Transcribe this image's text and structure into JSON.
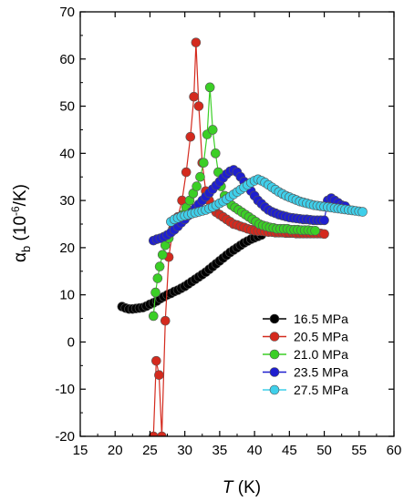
{
  "chart_data": {
    "type": "line",
    "xlabel": "T (K)",
    "xlabel_italic": "T",
    "xlabel_unit": " (K)",
    "ylabel_base": "α",
    "ylabel_sub": "b",
    "ylabel_paren": " (10",
    "ylabel_sup": "-6",
    "ylabel_unit": "/K)",
    "xlim": [
      15,
      60
    ],
    "ylim": [
      -20,
      70
    ],
    "xticks": [
      15,
      20,
      25,
      30,
      35,
      40,
      45,
      50,
      55,
      60
    ],
    "yticks": [
      -20,
      -10,
      0,
      10,
      20,
      30,
      40,
      50,
      60,
      70
    ],
    "legend_position": "bottom-right",
    "series": [
      {
        "name": "16.5 MPa",
        "color": "#000000",
        "x": [
          21.0,
          21.5,
          22.0,
          22.5,
          23.0,
          23.5,
          24.0,
          24.5,
          25.0,
          25.5,
          26.0,
          26.5,
          27.0,
          27.5,
          28.0,
          28.5,
          29.0,
          29.5,
          30.0,
          30.5,
          31.0,
          31.5,
          32.0,
          32.5,
          33.0,
          33.5,
          34.0,
          34.5,
          35.0,
          35.5,
          36.0,
          36.5,
          37.0,
          37.5,
          38.0,
          38.5,
          39.0,
          39.5,
          40.0,
          40.5,
          41.0
        ],
        "y": [
          7.5,
          7.2,
          7.0,
          7.0,
          7.1,
          7.2,
          7.3,
          7.6,
          8.0,
          8.3,
          8.7,
          9.2,
          9.6,
          10.0,
          10.3,
          10.7,
          11.0,
          11.4,
          11.8,
          12.3,
          12.8,
          13.3,
          13.8,
          14.3,
          14.8,
          15.4,
          16.0,
          16.6,
          17.2,
          17.8,
          18.4,
          19.0,
          19.5,
          20.0,
          20.5,
          21.0,
          21.4,
          21.8,
          22.1,
          22.4,
          22.7
        ]
      },
      {
        "name": "20.5 MPa",
        "color": "#d42a1e",
        "x": [
          25.5,
          25.9,
          26.3,
          26.7,
          27.2,
          27.7,
          28.3,
          29.0,
          29.6,
          30.2,
          30.8,
          31.3,
          31.6,
          32.0,
          32.5,
          33.0,
          33.5,
          34.0,
          34.5,
          35.0,
          35.5,
          36.0,
          36.5,
          37.0,
          37.5,
          38.0,
          38.5,
          39.0,
          39.5,
          40.0,
          40.5,
          41.0,
          41.5,
          42.0,
          42.5,
          43.0,
          43.5,
          44.0,
          44.5,
          45.0,
          45.5,
          46.0,
          46.5,
          47.0,
          47.5,
          48.0,
          48.5,
          49.0,
          49.5,
          50.0
        ],
        "y": [
          -20,
          -4.0,
          -7.0,
          -20,
          4.5,
          18.0,
          24.0,
          26.5,
          30.0,
          36.0,
          43.5,
          52.0,
          63.5,
          50.0,
          38.0,
          32.0,
          30.0,
          28.5,
          27.5,
          27.0,
          26.5,
          26.0,
          25.5,
          25.0,
          24.8,
          24.5,
          24.3,
          24.0,
          23.8,
          23.6,
          23.5,
          23.5,
          23.4,
          23.3,
          23.3,
          23.2,
          23.2,
          23.2,
          23.1,
          23.1,
          23.1,
          23.0,
          23.0,
          23.0,
          23.0,
          23.0,
          23.0,
          23.0,
          23.0,
          22.9
        ]
      },
      {
        "name": "21.0 MPa",
        "color": "#3bcf26",
        "x": [
          25.5,
          25.8,
          26.1,
          26.4,
          26.8,
          27.2,
          27.7,
          28.2,
          28.7,
          29.2,
          29.7,
          30.2,
          30.7,
          31.2,
          31.7,
          32.2,
          32.7,
          33.2,
          33.6,
          34.0,
          34.4,
          34.8,
          35.2,
          35.7,
          36.2,
          36.7,
          37.2,
          37.7,
          38.2,
          38.7,
          39.2,
          39.7,
          40.2,
          40.7,
          41.2,
          41.7,
          42.2,
          42.7,
          43.2,
          43.7,
          44.2,
          44.7,
          45.2,
          45.7,
          46.2,
          46.7,
          47.2,
          47.7,
          48.2,
          48.7
        ],
        "y": [
          5.5,
          10.5,
          13.5,
          16.0,
          18.5,
          20.5,
          22.0,
          23.5,
          25.0,
          26.0,
          27.0,
          28.5,
          30.0,
          31.5,
          33.0,
          35.0,
          38.0,
          44.0,
          54.0,
          45.0,
          40.0,
          36.0,
          33.0,
          31.0,
          30.0,
          29.0,
          28.5,
          28.0,
          27.5,
          27.0,
          26.5,
          26.0,
          25.5,
          25.0,
          24.7,
          24.5,
          24.3,
          24.2,
          24.0,
          24.0,
          24.0,
          24.0,
          23.8,
          23.8,
          23.8,
          23.7,
          23.7,
          23.7,
          23.6,
          23.6
        ]
      },
      {
        "name": "23.5 MPa",
        "color": "#1f1fcf",
        "x": [
          25.5,
          26.0,
          26.5,
          27.0,
          27.5,
          28.0,
          28.5,
          29.0,
          29.5,
          30.0,
          30.5,
          31.0,
          31.5,
          32.0,
          32.5,
          33.0,
          33.5,
          34.0,
          34.5,
          35.0,
          35.5,
          36.0,
          36.5,
          37.0,
          37.5,
          38.0,
          38.5,
          39.0,
          39.5,
          40.0,
          40.5,
          41.0,
          41.5,
          42.0,
          42.5,
          43.0,
          43.5,
          44.0,
          44.5,
          45.0,
          45.5,
          46.0,
          46.5,
          47.0,
          47.5,
          48.0,
          48.5,
          49.0,
          49.5,
          50.0,
          50.5,
          51.0,
          51.5,
          52.0,
          52.5,
          53.0
        ],
        "y": [
          21.5,
          21.8,
          22.0,
          22.3,
          22.7,
          23.2,
          23.8,
          24.5,
          25.3,
          26.0,
          26.8,
          27.6,
          28.4,
          29.2,
          30.0,
          30.8,
          31.6,
          32.4,
          33.2,
          34.0,
          34.8,
          35.6,
          36.2,
          36.5,
          36.0,
          35.0,
          34.0,
          33.0,
          32.0,
          31.0,
          30.0,
          29.3,
          28.6,
          28.0,
          27.6,
          27.3,
          27.0,
          26.8,
          26.6,
          26.4,
          26.3,
          26.2,
          26.1,
          26.0,
          26.0,
          25.9,
          25.8,
          25.8,
          25.8,
          25.8,
          30.0,
          30.5,
          30.0,
          29.5,
          29.0,
          28.8
        ]
      },
      {
        "name": "27.5 MPa",
        "color": "#3fcfea",
        "x": [
          28.0,
          28.5,
          29.0,
          29.5,
          30.0,
          30.5,
          31.0,
          31.5,
          32.0,
          32.5,
          33.0,
          33.5,
          34.0,
          34.5,
          35.0,
          35.5,
          36.0,
          36.5,
          37.0,
          37.5,
          38.0,
          38.5,
          39.0,
          39.5,
          40.0,
          40.5,
          41.0,
          41.5,
          42.0,
          42.5,
          43.0,
          43.5,
          44.0,
          44.5,
          45.0,
          45.5,
          46.0,
          46.5,
          47.0,
          47.5,
          48.0,
          48.5,
          49.0,
          49.5,
          50.0,
          50.5,
          51.0,
          51.5,
          52.0,
          52.5,
          53.0,
          53.5,
          54.0,
          54.5,
          55.0,
          55.5
        ],
        "y": [
          25.5,
          26.0,
          26.3,
          26.6,
          26.8,
          27.0,
          27.2,
          27.4,
          27.6,
          27.8,
          28.0,
          28.3,
          28.6,
          29.0,
          29.4,
          29.8,
          30.3,
          30.8,
          31.3,
          31.8,
          32.3,
          32.8,
          33.3,
          33.8,
          34.2,
          34.5,
          34.2,
          33.8,
          33.3,
          32.8,
          32.3,
          31.8,
          31.4,
          31.0,
          30.7,
          30.4,
          30.1,
          29.8,
          29.6,
          29.4,
          29.2,
          29.0,
          28.9,
          28.8,
          28.7,
          28.6,
          28.5,
          28.4,
          28.3,
          28.2,
          28.1,
          28.0,
          27.9,
          27.8,
          27.7,
          27.6
        ]
      }
    ]
  }
}
